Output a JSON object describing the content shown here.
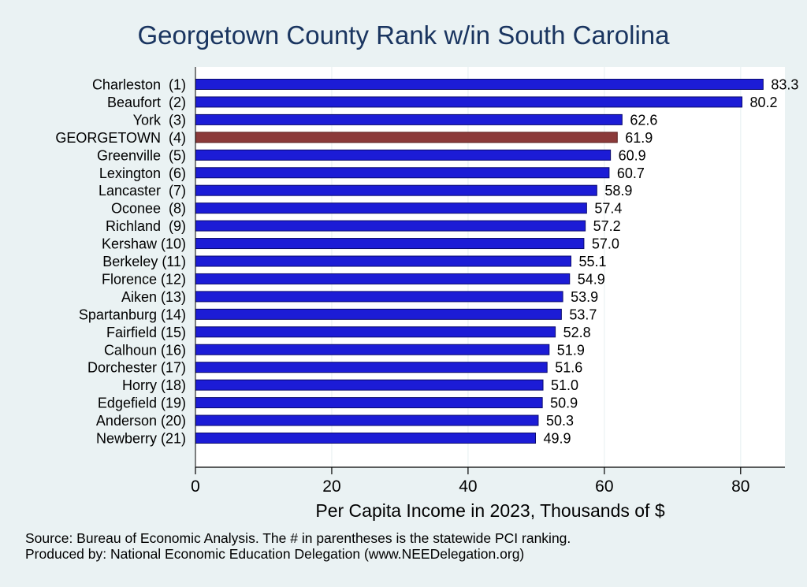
{
  "colors": {
    "background": "#eaf2f3",
    "plot_background": "#ffffff",
    "bar": "#1c1cd6",
    "bar_edge": "#0a0a6e",
    "highlight_bar": "#8b3a3a",
    "highlight_edge": "#5a1e1e",
    "title": "#1a3560",
    "grid": "#eaf2f3"
  },
  "chart_data": {
    "type": "bar",
    "orientation": "horizontal",
    "title": "Georgetown County Rank w/in South Carolina",
    "xlabel": "Per Capita Income in 2023, Thousands of $",
    "ylabel": "",
    "xlim": [
      0,
      86.5
    ],
    "xticks": [
      0,
      20,
      40,
      60,
      80
    ],
    "grid": true,
    "highlight_index": 3,
    "categories": [
      "Charleston  (1)",
      "Beaufort  (2)",
      "York  (3)",
      "GEORGETOWN  (4)",
      "Greenville  (5)",
      "Lexington  (6)",
      "Lancaster  (7)",
      "Oconee  (8)",
      "Richland  (9)",
      "Kershaw (10)",
      "Berkeley (11)",
      "Florence (12)",
      "Aiken (13)",
      "Spartanburg (14)",
      "Fairfield (15)",
      "Calhoun (16)",
      "Dorchester (17)",
      "Horry (18)",
      "Edgefield (19)",
      "Anderson (20)",
      "Newberry (21)"
    ],
    "values": [
      83.3,
      80.2,
      62.6,
      61.9,
      60.9,
      60.7,
      58.9,
      57.4,
      57.2,
      57.0,
      55.1,
      54.9,
      53.9,
      53.7,
      52.8,
      51.9,
      51.6,
      51.0,
      50.9,
      50.3,
      49.9
    ],
    "value_labels": [
      "83.3",
      "80.2",
      "62.6",
      "61.9",
      "60.9",
      "60.7",
      "58.9",
      "57.4",
      "57.2",
      "57.0",
      "55.1",
      "54.9",
      "53.9",
      "53.7",
      "52.8",
      "51.9",
      "51.6",
      "51.0",
      "50.9",
      "50.3",
      "49.9"
    ]
  },
  "notes": {
    "source": "Source: Bureau of Economic Analysis. The # in parentheses is the statewide PCI ranking.",
    "producer": "Produced by: National Economic Education Delegation (www.NEEDelegation.org)"
  }
}
